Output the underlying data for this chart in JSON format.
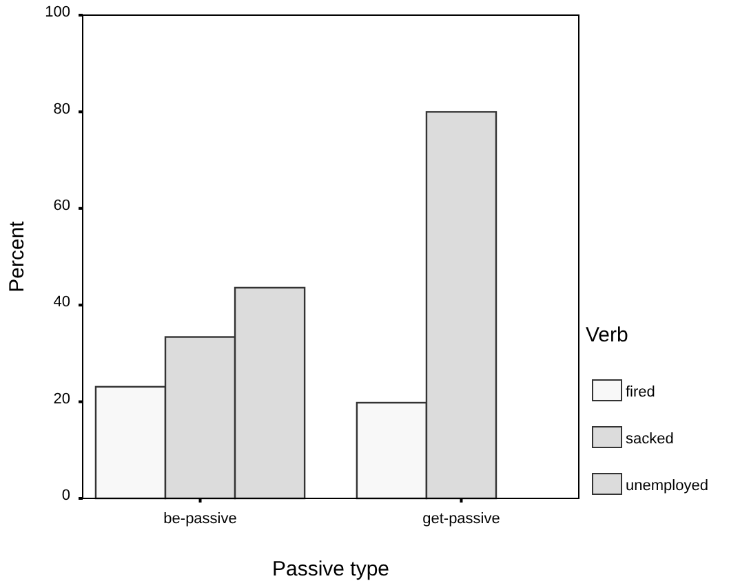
{
  "chart_data": {
    "type": "bar",
    "xlabel": "Passive type",
    "ylabel": "Percent",
    "legend_title": "Verb",
    "categories": [
      "be-passive",
      "get-passive"
    ],
    "series": [
      {
        "name": "fired",
        "color": "#f8f8f8",
        "values": [
          23.1,
          19.8
        ]
      },
      {
        "name": "sacked",
        "color": "#dcdcdc",
        "values": [
          33.4,
          80
        ]
      },
      {
        "name": "unemployed",
        "color": "#dcdcdc",
        "values": [
          43.6,
          0
        ]
      }
    ],
    "ylim": [
      0,
      100
    ],
    "yticks": [
      0,
      20,
      40,
      60,
      80,
      100
    ],
    "grid": false,
    "legend": "right"
  }
}
